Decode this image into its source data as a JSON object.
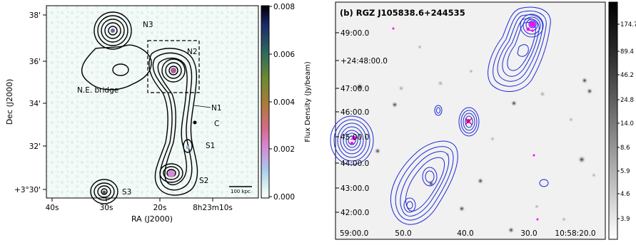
{
  "left_panel": {
    "xlabel": "RA (J2000)",
    "ylabel": "Dec (J2000)",
    "x_ticks": [
      "40s",
      "30s",
      "20s",
      "8h23m10s"
    ],
    "y_ticks": [
      "38'",
      "36'",
      "34'",
      "32'",
      "+3°30'"
    ],
    "sources": [
      "N3",
      "N2",
      "N1",
      "C",
      "S1",
      "S2",
      "S3"
    ],
    "bridge_label": "N.E. bridge",
    "scalebar_label": "100 kpc",
    "colorbar": {
      "label": "Flux Density (Jy/beam)",
      "ticks": [
        "0.008",
        "0.006",
        "0.004",
        "0.002",
        "0.000"
      ],
      "colors": [
        "#000000",
        "#1a2a6c",
        "#2f6c5c",
        "#6d8a2e",
        "#b07a3a",
        "#d46a8c",
        "#d58ad8",
        "#a9c9ee",
        "#d9f2ee",
        "#ffffff"
      ]
    },
    "contour_color": "#000000"
  },
  "right_panel": {
    "title": "(b) RGZ J105838.6+244535",
    "x_ticks": [
      "59:00.0",
      "50.0",
      "40.0",
      "30.0",
      "10:58:20.0"
    ],
    "y_ticks": [
      "49:00.0",
      "+24:48:00.0",
      "47:00.0",
      "46:00.0",
      "45:00.0",
      "44:00.0",
      "43:00.0",
      "42:00.0"
    ],
    "colorbar_ticks": [
      "174.7",
      "89.4",
      "46.2",
      "24.8",
      "14.0",
      "8.6",
      "5.9",
      "4.6",
      "3.9"
    ],
    "contour_color": "#1f2bd6",
    "marker_color": "#ff00ff"
  }
}
